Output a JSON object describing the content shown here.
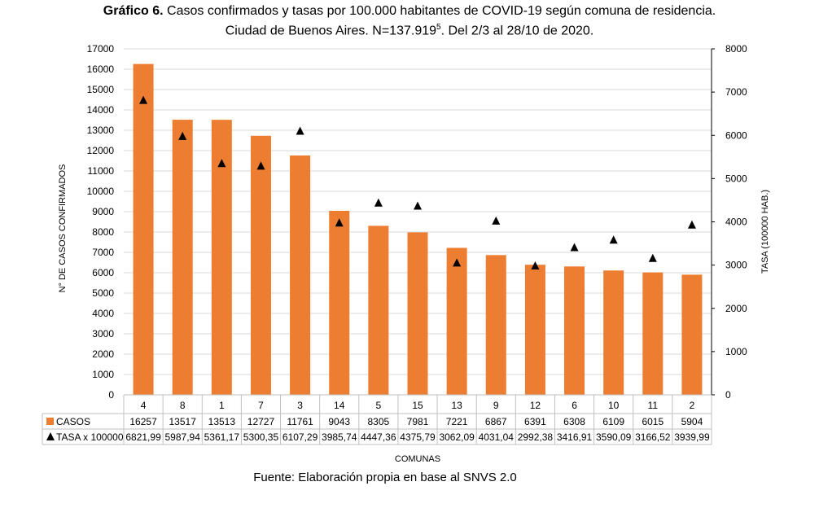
{
  "title": {
    "prefix": "Gráfico 6.",
    "line1": "Casos confirmados y tasas por 100.000 habitantes de COVID-19 según comuna de residencia.",
    "line2_a": "Ciudad de Buenos Aires. N=137.919",
    "line2_sup": "5",
    "line2_b": ". Del 2/3 al 28/10 de 2020."
  },
  "source": "Fuente: Elaboración propia en base al SNVS 2.0",
  "colors": {
    "bar": "#ED7D31",
    "marker": "#000000",
    "grid": "#D9D9D9"
  },
  "chart_data": {
    "type": "bar",
    "categories": [
      "4",
      "8",
      "1",
      "7",
      "3",
      "14",
      "5",
      "15",
      "13",
      "9",
      "12",
      "6",
      "10",
      "11",
      "2"
    ],
    "series": [
      {
        "name": "CASOS",
        "type": "bar",
        "axis": "left",
        "values": [
          16257,
          13517,
          13513,
          12727,
          11761,
          9043,
          8305,
          7981,
          7221,
          6867,
          6391,
          6308,
          6109,
          6015,
          5904
        ],
        "labels": [
          "16257",
          "13517",
          "13513",
          "12727",
          "11761",
          "9043",
          "8305",
          "7981",
          "7221",
          "6867",
          "6391",
          "6308",
          "6109",
          "6015",
          "5904"
        ]
      },
      {
        "name": "TASA x 100000",
        "type": "marker",
        "marker": "triangle",
        "axis": "right",
        "values": [
          6821.99,
          5987.94,
          5361.17,
          5300.35,
          6107.29,
          3985.74,
          4447.36,
          4375.79,
          3062.09,
          4031.04,
          2992.38,
          3416.91,
          3590.09,
          3166.52,
          3939.99
        ],
        "labels": [
          "6821,99",
          "5987,94",
          "5361,17",
          "5300,35",
          "6107,29",
          "3985,74",
          "4447,36",
          "4375,79",
          "3062,09",
          "4031,04",
          "2992,38",
          "3416,91",
          "3590,09",
          "3166,52",
          "3939,99"
        ]
      }
    ],
    "xlabel": "COMUNAS",
    "ylabel": "N° DE CASOS CONFIRMADOS",
    "y2label": "TASA (100000 HAB.)",
    "ylim": [
      0,
      17000
    ],
    "y2lim": [
      0,
      8000
    ],
    "yticks": [
      "0",
      "1000",
      "2000",
      "3000",
      "4000",
      "5000",
      "6000",
      "7000",
      "8000",
      "9000",
      "10000",
      "11000",
      "12000",
      "13000",
      "14000",
      "15000",
      "16000",
      "17000"
    ],
    "y2ticks": [
      "0",
      "1000",
      "2000",
      "3000",
      "4000",
      "5000",
      "6000",
      "7000",
      "8000"
    ],
    "grid": true,
    "legend": "data-table"
  }
}
